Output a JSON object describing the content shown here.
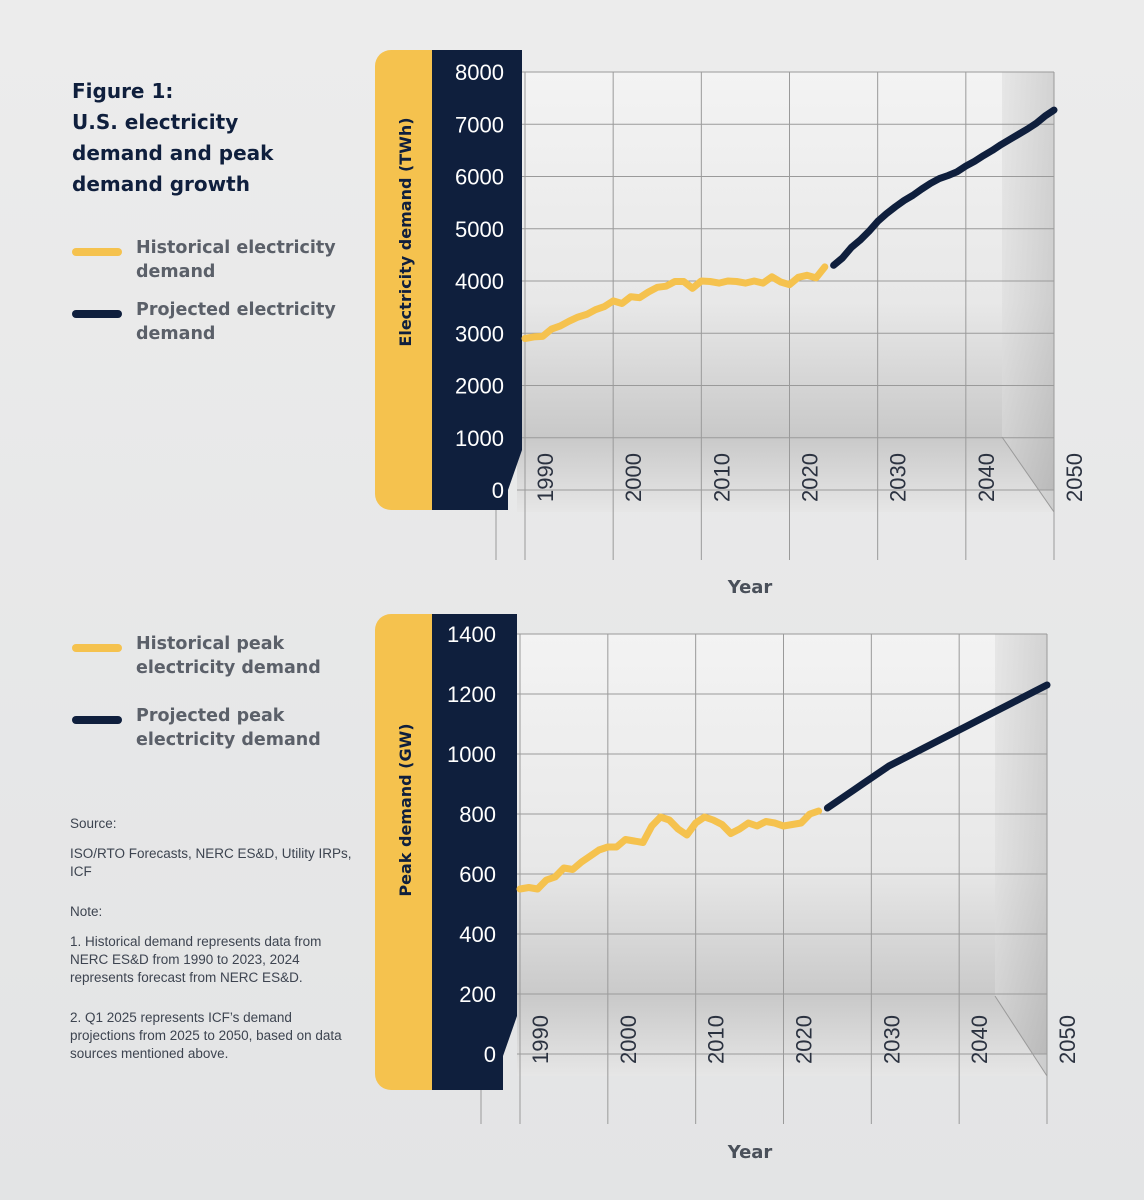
{
  "title_lines": [
    "Figure 1:",
    "U.S. electricity",
    "demand and peak",
    "demand growth"
  ],
  "colors": {
    "historical": "#f5c24e",
    "projected": "#0f1f3d",
    "panel_yellow": "#f5c24e",
    "panel_navy": "#0f1f3d"
  },
  "legend1": [
    {
      "label": "Historical electricity demand",
      "color": "#f5c24e"
    },
    {
      "label": "Projected electricity demand",
      "color": "#0f1f3d"
    }
  ],
  "legend2": [
    {
      "label": "Historical peak electricity demand",
      "color": "#f5c24e"
    },
    {
      "label": "Projected peak electricity demand",
      "color": "#0f1f3d"
    }
  ],
  "notes": {
    "source_heading": "Source:",
    "source_text": "ISO/RTO Forecasts, NERC ES&D, Utility IRPs, ICF",
    "note_heading": "Note:",
    "note1": "1. Historical demand represents data from NERC ES&D from 1990 to 2023, 2024 represents forecast from NERC ES&D.",
    "note2": "2. Q1 2025 represents ICF’s demand projections from 2025 to 2050, based on data sources mentioned above."
  },
  "chart_data": [
    {
      "type": "line",
      "title": "U.S. electricity demand",
      "xlabel": "Year",
      "ylabel": "Electricity demand (TWh)",
      "ylim": [
        0,
        8000
      ],
      "yticks": [
        0,
        1000,
        2000,
        3000,
        4000,
        5000,
        6000,
        7000,
        8000
      ],
      "xticks": [
        1990,
        2000,
        2010,
        2020,
        2030,
        2040,
        2050
      ],
      "xlim": [
        1990,
        2050
      ],
      "series": [
        {
          "name": "Historical electricity demand",
          "color": "#f5c24e",
          "x": [
            1990,
            1991,
            1992,
            1993,
            1994,
            1995,
            1996,
            1997,
            1998,
            1999,
            2000,
            2001,
            2002,
            2003,
            2004,
            2005,
            2006,
            2007,
            2008,
            2009,
            2010,
            2011,
            2012,
            2013,
            2014,
            2015,
            2016,
            2017,
            2018,
            2019,
            2020,
            2021,
            2022,
            2023,
            2024
          ],
          "y": [
            2900,
            2930,
            2940,
            3080,
            3140,
            3230,
            3310,
            3360,
            3450,
            3510,
            3620,
            3570,
            3700,
            3680,
            3790,
            3880,
            3900,
            3990,
            3990,
            3860,
            4000,
            3990,
            3960,
            4000,
            3990,
            3960,
            4000,
            3960,
            4080,
            3980,
            3930,
            4070,
            4110,
            4060,
            4270
          ]
        },
        {
          "name": "Projected electricity demand",
          "color": "#0f1f3d",
          "x": [
            2025,
            2026,
            2027,
            2028,
            2029,
            2030,
            2031,
            2032,
            2033,
            2034,
            2035,
            2036,
            2037,
            2038,
            2039,
            2040,
            2041,
            2042,
            2043,
            2044,
            2045,
            2046,
            2047,
            2048,
            2049,
            2050
          ],
          "y": [
            4300,
            4440,
            4640,
            4780,
            4950,
            5140,
            5290,
            5420,
            5540,
            5640,
            5760,
            5870,
            5960,
            6020,
            6090,
            6200,
            6290,
            6400,
            6500,
            6610,
            6710,
            6810,
            6910,
            7020,
            7160,
            7270
          ]
        }
      ]
    },
    {
      "type": "line",
      "title": "U.S. peak demand",
      "xlabel": "Year",
      "ylabel": "Peak demand (GW)",
      "ylim": [
        0,
        1400
      ],
      "yticks": [
        0,
        200,
        400,
        600,
        800,
        1000,
        1200,
        1400
      ],
      "xticks": [
        1990,
        2000,
        2010,
        2020,
        2030,
        2040,
        2050
      ],
      "xlim": [
        1990,
        2050
      ],
      "series": [
        {
          "name": "Historical peak electricity demand",
          "color": "#f5c24e",
          "x": [
            1990,
            1991,
            1992,
            1993,
            1994,
            1995,
            1996,
            1997,
            1998,
            1999,
            2000,
            2001,
            2002,
            2003,
            2004,
            2005,
            2006,
            2007,
            2008,
            2009,
            2010,
            2011,
            2012,
            2013,
            2014,
            2015,
            2016,
            2017,
            2018,
            2019,
            2020,
            2021,
            2022,
            2023,
            2024
          ],
          "y": [
            550,
            555,
            550,
            580,
            590,
            620,
            615,
            640,
            660,
            680,
            690,
            690,
            715,
            710,
            705,
            760,
            790,
            780,
            750,
            730,
            770,
            790,
            780,
            765,
            735,
            750,
            770,
            760,
            775,
            770,
            760,
            765,
            770,
            800,
            810
          ]
        },
        {
          "name": "Projected peak electricity demand",
          "color": "#0f1f3d",
          "x": [
            2025,
            2026,
            2027,
            2028,
            2029,
            2030,
            2031,
            2032,
            2033,
            2034,
            2035,
            2036,
            2037,
            2038,
            2039,
            2040,
            2041,
            2042,
            2043,
            2044,
            2045,
            2046,
            2047,
            2048,
            2049,
            2050
          ],
          "y": [
            820,
            840,
            860,
            880,
            900,
            920,
            940,
            960,
            975,
            990,
            1005,
            1020,
            1035,
            1050,
            1065,
            1080,
            1095,
            1110,
            1125,
            1140,
            1155,
            1170,
            1185,
            1200,
            1215,
            1230
          ]
        }
      ]
    }
  ]
}
